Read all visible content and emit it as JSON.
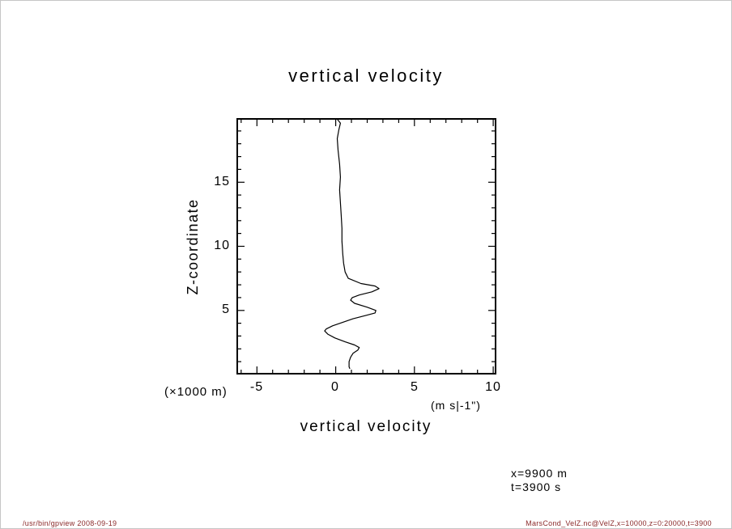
{
  "page": {
    "annotation": {
      "line1": "x=9900 m",
      "line2": "t=3900 s"
    },
    "footer_left": "/usr/bin/gpview  2008-09-19",
    "footer_right": "MarsCond_VelZ.nc@VelZ,x=10000,z=0:20000,t=3900",
    "colors": {
      "footer_text": "#8b2a2a",
      "curve": "#000000",
      "background": "#ffffff"
    }
  },
  "chart_data": {
    "type": "line",
    "title": "vertical velocity",
    "xlabel": "vertical velocity",
    "x_unit": "(m s|-1\")",
    "ylabel": "Z-coordinate",
    "y_unit": "(×1000 m)",
    "xlim": [
      -6.3,
      10.2
    ],
    "ylim": [
      0,
      20
    ],
    "xticks": [
      -5,
      0,
      5,
      10
    ],
    "xtick_labels": [
      "-5",
      "0",
      "5",
      "10"
    ],
    "xticks_minor": [
      -6,
      -4,
      -3,
      -2,
      -1,
      1,
      2,
      3,
      4,
      6,
      7,
      8,
      9
    ],
    "yticks": [
      15,
      10,
      5
    ],
    "ytick_labels": [
      "15",
      "10",
      "5"
    ],
    "yticks_minor": [
      1,
      2,
      3,
      4,
      6,
      7,
      8,
      9,
      11,
      12,
      13,
      14,
      16,
      17,
      18,
      19
    ],
    "grid": false,
    "legend": "none",
    "series": [
      {
        "name": "VelZ",
        "points": [
          [
            0.05,
            20
          ],
          [
            0.3,
            19.6
          ],
          [
            0.2,
            19.1
          ],
          [
            0.1,
            18.4
          ],
          [
            0.15,
            17.5
          ],
          [
            0.25,
            16.4
          ],
          [
            0.3,
            15.4
          ],
          [
            0.25,
            14.4
          ],
          [
            0.3,
            13.4
          ],
          [
            0.35,
            12.4
          ],
          [
            0.4,
            11.4
          ],
          [
            0.4,
            10.4
          ],
          [
            0.45,
            9.4
          ],
          [
            0.5,
            8.7
          ],
          [
            0.6,
            8.0
          ],
          [
            0.8,
            7.5
          ],
          [
            1.6,
            7.1
          ],
          [
            2.5,
            6.9
          ],
          [
            2.75,
            6.7
          ],
          [
            2.3,
            6.45
          ],
          [
            1.5,
            6.2
          ],
          [
            1.05,
            6.0
          ],
          [
            0.95,
            5.8
          ],
          [
            1.2,
            5.55
          ],
          [
            2.0,
            5.25
          ],
          [
            2.55,
            5.0
          ],
          [
            2.5,
            4.8
          ],
          [
            1.9,
            4.6
          ],
          [
            1.1,
            4.35
          ],
          [
            0.4,
            4.05
          ],
          [
            -0.2,
            3.8
          ],
          [
            -0.6,
            3.55
          ],
          [
            -0.7,
            3.4
          ],
          [
            -0.5,
            3.15
          ],
          [
            -0.05,
            2.85
          ],
          [
            0.6,
            2.55
          ],
          [
            1.2,
            2.3
          ],
          [
            1.5,
            2.1
          ],
          [
            1.4,
            1.9
          ],
          [
            1.1,
            1.65
          ],
          [
            0.95,
            1.35
          ],
          [
            0.85,
            1.0
          ],
          [
            0.85,
            0.6
          ],
          [
            0.9,
            0.45
          ]
        ]
      }
    ]
  }
}
